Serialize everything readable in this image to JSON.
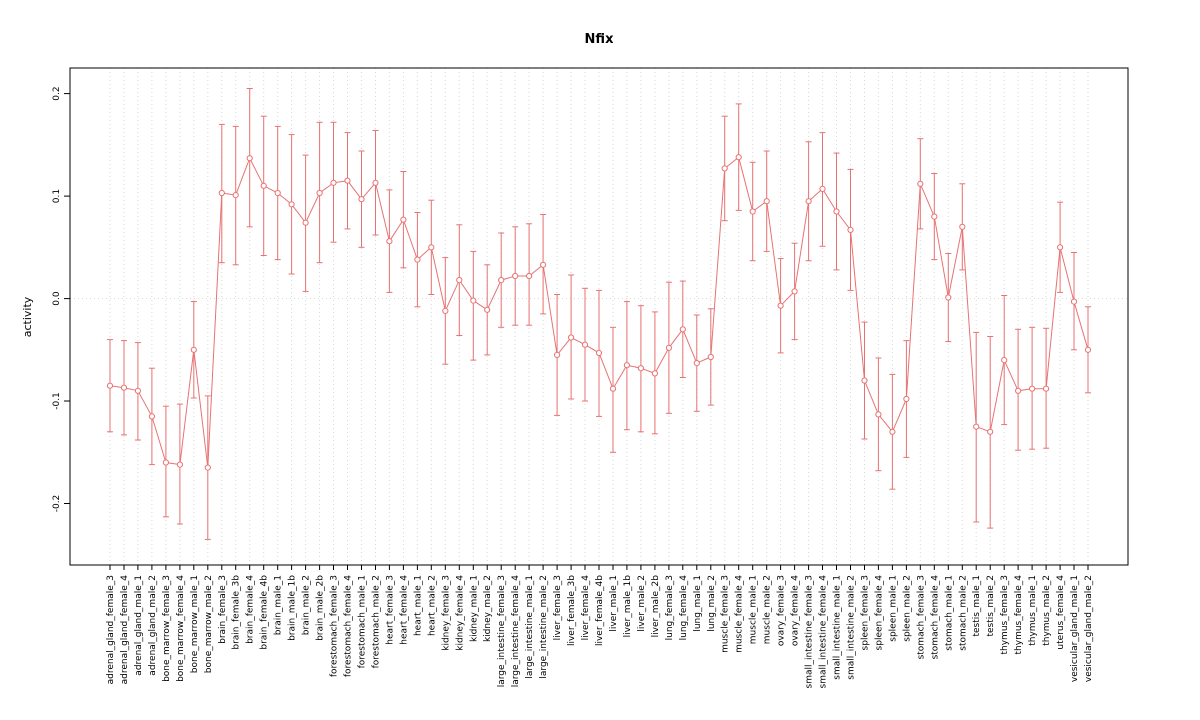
{
  "chart_data": {
    "type": "line",
    "title": "Nfix",
    "xlabel": "",
    "ylabel": "activity",
    "ylim": [
      -0.26,
      0.225
    ],
    "yticks": [
      -0.2,
      -0.1,
      0.0,
      0.1,
      0.2
    ],
    "legend": "none",
    "grid": "vertical dotted line per category, horizontal dotted line at zero",
    "marker": "open-circle",
    "error_bars": "vertical with caps",
    "color": "#e87272",
    "grid_color": "#d6d6d6",
    "categories": [
      "adrenal_gland_female_3",
      "adrenal_gland_female_4",
      "adrenal_gland_male_1",
      "adrenal_gland_male_2",
      "bone_marrow_female_3",
      "bone_marrow_female_4",
      "bone_marrow_male_1",
      "bone_marrow_male_2",
      "brain_female_3",
      "brain_female_3b",
      "brain_female_4",
      "brain_female_4b",
      "brain_male_1",
      "brain_male_1b",
      "brain_male_2",
      "brain_male_2b",
      "forestomach_female_3",
      "forestomach_female_4",
      "forestomach_male_1",
      "forestomach_male_2",
      "heart_female_3",
      "heart_female_4",
      "heart_male_1",
      "heart_male_2",
      "kidney_female_3",
      "kidney_female_4",
      "kidney_male_1",
      "kidney_male_2",
      "large_intestine_female_3",
      "large_intestine_female_4",
      "large_intestine_male_1",
      "large_intestine_male_2",
      "liver_female_3",
      "liver_female_3b",
      "liver_female_4",
      "liver_female_4b",
      "liver_male_1",
      "liver_male_1b",
      "liver_male_2",
      "liver_male_2b",
      "lung_female_3",
      "lung_female_4",
      "lung_male_1",
      "lung_male_2",
      "muscle_female_3",
      "muscle_female_4",
      "muscle_male_1",
      "muscle_male_2",
      "ovary_female_3",
      "ovary_female_4",
      "small_intestine_female_3",
      "small_intestine_female_4",
      "small_intestine_male_1",
      "small_intestine_male_2",
      "spleen_female_3",
      "spleen_female_4",
      "spleen_male_1",
      "spleen_male_2",
      "stomach_female_3",
      "stomach_female_4",
      "stomach_male_1",
      "stomach_male_2",
      "testis_male_1",
      "testis_male_2",
      "thymus_female_3",
      "thymus_female_4",
      "thymus_male_1",
      "thymus_male_2",
      "uterus_female_4",
      "vesicular_gland_male_1",
      "vesicular_gland_male_2"
    ],
    "values": [
      -0.085,
      -0.087,
      -0.09,
      -0.115,
      -0.16,
      -0.162,
      -0.05,
      -0.165,
      0.103,
      0.101,
      0.137,
      0.11,
      0.103,
      0.092,
      0.074,
      0.103,
      0.113,
      0.115,
      0.097,
      0.113,
      0.056,
      0.077,
      0.038,
      0.05,
      -0.012,
      0.018,
      -0.002,
      -0.011,
      0.018,
      0.022,
      0.022,
      0.033,
      -0.055,
      -0.038,
      -0.045,
      -0.053,
      -0.088,
      -0.065,
      -0.068,
      -0.073,
      -0.048,
      -0.03,
      -0.063,
      -0.057,
      0.127,
      0.138,
      0.085,
      0.095,
      -0.007,
      0.007,
      0.095,
      0.107,
      0.085,
      0.067,
      -0.08,
      -0.113,
      -0.13,
      -0.098,
      0.112,
      0.08,
      0.001,
      0.07,
      -0.125,
      -0.13,
      -0.06,
      -0.09,
      -0.088,
      -0.088,
      0.05,
      -0.003,
      -0.05
    ],
    "ci_low": [
      -0.13,
      -0.133,
      -0.138,
      -0.162,
      -0.213,
      -0.22,
      -0.097,
      -0.235,
      0.035,
      0.033,
      0.07,
      0.042,
      0.038,
      0.024,
      0.007,
      0.035,
      0.055,
      0.068,
      0.05,
      0.062,
      0.006,
      0.03,
      -0.008,
      0.004,
      -0.064,
      -0.036,
      -0.06,
      -0.055,
      -0.028,
      -0.026,
      -0.026,
      -0.015,
      -0.114,
      -0.098,
      -0.1,
      -0.115,
      -0.15,
      -0.128,
      -0.13,
      -0.132,
      -0.112,
      -0.077,
      -0.11,
      -0.104,
      0.076,
      0.086,
      0.037,
      0.046,
      -0.053,
      -0.04,
      0.037,
      0.051,
      0.028,
      0.008,
      -0.137,
      -0.168,
      -0.186,
      -0.155,
      0.068,
      0.038,
      -0.042,
      0.028,
      -0.218,
      -0.224,
      -0.123,
      -0.148,
      -0.147,
      -0.146,
      0.006,
      -0.05,
      -0.092
    ],
    "ci_high": [
      -0.04,
      -0.041,
      -0.043,
      -0.068,
      -0.105,
      -0.103,
      -0.003,
      -0.095,
      0.17,
      0.168,
      0.205,
      0.178,
      0.168,
      0.16,
      0.14,
      0.172,
      0.172,
      0.162,
      0.144,
      0.164,
      0.106,
      0.124,
      0.084,
      0.096,
      0.04,
      0.072,
      0.046,
      0.033,
      0.064,
      0.07,
      0.073,
      0.082,
      0.004,
      0.023,
      0.01,
      0.008,
      -0.028,
      -0.003,
      -0.007,
      -0.013,
      0.016,
      0.017,
      -0.016,
      -0.01,
      0.178,
      0.19,
      0.133,
      0.144,
      0.039,
      0.054,
      0.153,
      0.162,
      0.142,
      0.126,
      -0.023,
      -0.058,
      -0.074,
      -0.041,
      0.156,
      0.122,
      0.044,
      0.112,
      -0.033,
      -0.037,
      0.003,
      -0.03,
      -0.028,
      -0.029,
      0.094,
      0.045,
      -0.008
    ]
  }
}
